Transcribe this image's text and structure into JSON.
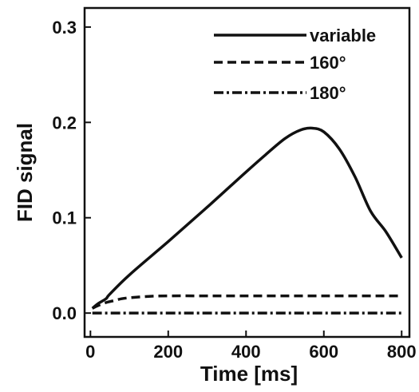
{
  "chart_data": {
    "type": "line",
    "xlabel": "Time [ms]",
    "ylabel": "FID signal",
    "xlim": [
      -15,
      820
    ],
    "ylim": [
      -0.025,
      0.32
    ],
    "x_ticks": [
      0,
      200,
      400,
      600,
      800
    ],
    "y_ticks": [
      0.0,
      0.1,
      0.2,
      0.3
    ],
    "x_tick_labels": [
      "0",
      "200",
      "400",
      "600",
      "800"
    ],
    "y_tick_labels": [
      "0.0",
      "0.1",
      "0.2",
      "0.3"
    ],
    "legend_position": "top-right",
    "grid": false,
    "series": [
      {
        "name": "variable",
        "dash": "solid",
        "x": [
          5,
          20,
          40,
          50,
          100,
          200,
          300,
          400,
          450,
          500,
          540,
          570,
          600,
          640,
          680,
          720,
          760,
          800
        ],
        "y": [
          0.005,
          0.01,
          0.015,
          0.02,
          0.04,
          0.075,
          0.111,
          0.148,
          0.166,
          0.183,
          0.192,
          0.194,
          0.19,
          0.172,
          0.143,
          0.107,
          0.085,
          0.058
        ]
      },
      {
        "name": "160°",
        "dash": "dashed",
        "x": [
          5,
          20,
          40,
          60,
          80,
          100,
          150,
          200,
          300,
          400,
          600,
          800
        ],
        "y": [
          0.005,
          0.008,
          0.011,
          0.013,
          0.015,
          0.016,
          0.0175,
          0.018,
          0.018,
          0.018,
          0.018,
          0.018
        ]
      },
      {
        "name": "180°",
        "dash": "dashdot",
        "x": [
          5,
          800
        ],
        "y": [
          0.0,
          0.0
        ]
      }
    ]
  }
}
